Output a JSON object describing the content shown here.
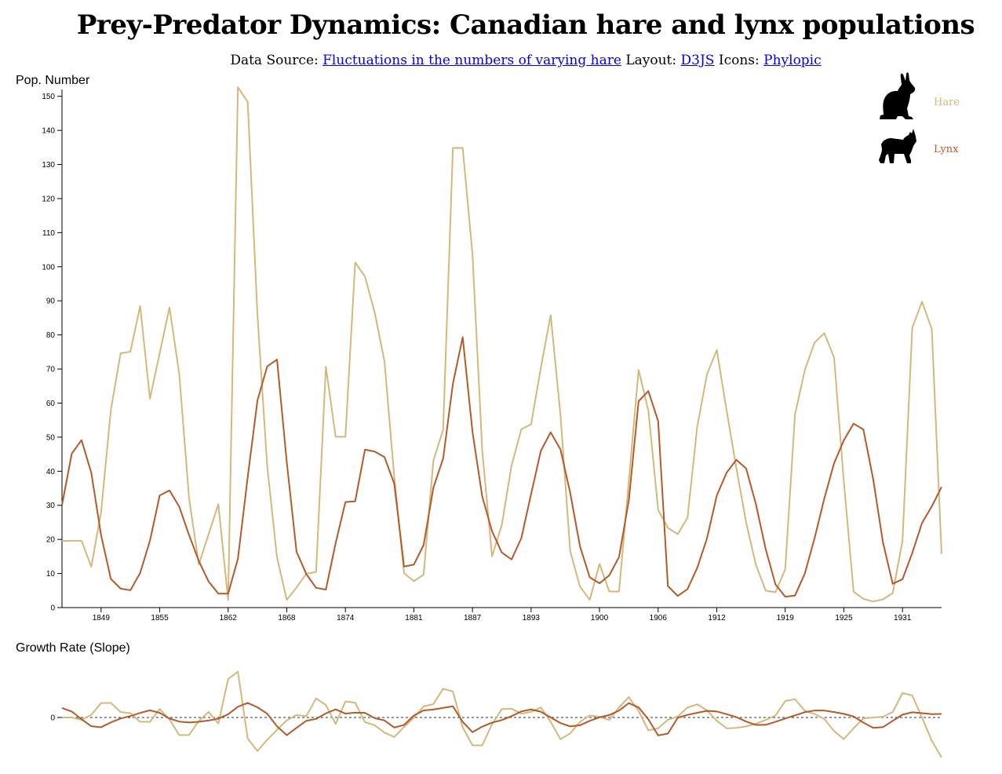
{
  "header": {
    "title": "Prey-Predator Dynamics: Canadian hare and lynx populations",
    "source_prefix": "Data Source:",
    "source_link": "Fluctuations in the numbers of varying hare",
    "layout_prefix": "Layout:",
    "layout_link": "D3JS",
    "icons_prefix": "Icons:",
    "icons_link": "Phylopic"
  },
  "colors": {
    "hare": "#d4b77a",
    "lynx": "#b45a2a",
    "axis": "#000000",
    "zero_line": "#333333"
  },
  "legend": [
    {
      "name": "Hare",
      "icon": "hare-silhouette-icon"
    },
    {
      "name": "Lynx",
      "icon": "lynx-silhouette-icon"
    }
  ],
  "chart_data": [
    {
      "type": "line",
      "ylabel": "Pop. Number",
      "xlim": [
        1845,
        1935
      ],
      "ylim": [
        0,
        152
      ],
      "y_ticks": [
        0,
        10,
        20,
        30,
        40,
        50,
        60,
        70,
        80,
        90,
        100,
        110,
        120,
        130,
        140,
        150
      ],
      "x_ticks": [
        1849,
        1855,
        1862,
        1868,
        1874,
        1881,
        1887,
        1893,
        1900,
        1906,
        1912,
        1919,
        1925,
        1931
      ],
      "x": [
        1845,
        1846,
        1847,
        1848,
        1849,
        1850,
        1851,
        1852,
        1853,
        1854,
        1855,
        1856,
        1857,
        1858,
        1859,
        1860,
        1861,
        1862,
        1863,
        1864,
        1865,
        1866,
        1867,
        1868,
        1869,
        1870,
        1871,
        1872,
        1873,
        1874,
        1875,
        1876,
        1877,
        1878,
        1879,
        1880,
        1881,
        1882,
        1883,
        1884,
        1885,
        1886,
        1887,
        1888,
        1889,
        1890,
        1891,
        1892,
        1893,
        1894,
        1895,
        1896,
        1897,
        1898,
        1899,
        1900,
        1901,
        1902,
        1903,
        1904,
        1905,
        1906,
        1907,
        1908,
        1909,
        1910,
        1911,
        1912,
        1913,
        1914,
        1915,
        1916,
        1917,
        1918,
        1919,
        1920,
        1921,
        1922,
        1923,
        1924,
        1925,
        1926,
        1927,
        1928,
        1929,
        1930,
        1931,
        1932,
        1933,
        1934,
        1935
      ],
      "series": [
        {
          "name": "Hare",
          "values": [
            19.58,
            19.6,
            19.61,
            11.99,
            28.04,
            58.0,
            74.6,
            75.09,
            88.48,
            61.28,
            74.67,
            88.06,
            68.51,
            32.19,
            12.64,
            21.49,
            30.35,
            2.18,
            152.65,
            148.36,
            85.81,
            41.41,
            14.75,
            2.28,
            5.91,
            9.95,
            10.44,
            70.64,
            50.12,
            50.13,
            101.25,
            97.12,
            86.51,
            72.17,
            38.32,
            10.11,
            7.74,
            9.67,
            43.12,
            52.21,
            134.85,
            134.86,
            103.79,
            46.1,
            15.03,
            24.2,
            41.65,
            52.34,
            53.78,
            70.4,
            85.81,
            56.69,
            16.59,
            6.16,
            2.3,
            12.82,
            4.72,
            4.73,
            37.22,
            69.72,
            57.78,
            28.68,
            23.37,
            21.54,
            26.34,
            53.1,
            68.48,
            75.58,
            57.92,
            40.97,
            24.95,
            12.59,
            4.97,
            4.5,
            11.21,
            56.6,
            69.63,
            77.74,
            80.53,
            73.38,
            36.93,
            4.64,
            2.54,
            1.8,
            2.39,
            4.23,
            19.52,
            82.11,
            89.76,
            81.66,
            15.76
          ]
        },
        {
          "name": "Lynx",
          "values": [
            30.09,
            45.15,
            49.15,
            39.52,
            21.23,
            8.42,
            5.56,
            5.08,
            10.17,
            19.6,
            32.91,
            34.38,
            29.59,
            21.3,
            13.69,
            7.65,
            4.08,
            4.09,
            14.33,
            38.22,
            60.78,
            70.77,
            72.77,
            42.68,
            16.39,
            9.83,
            5.8,
            5.26,
            18.91,
            30.95,
            31.18,
            46.34,
            45.77,
            44.15,
            36.33,
            12.03,
            12.6,
            18.34,
            35.14,
            43.77,
            65.69,
            79.35,
            51.65,
            32.59,
            22.45,
            16.16,
            14.12,
            20.38,
            33.33,
            46.0,
            51.41,
            46.43,
            33.68,
            18.01,
            8.86,
            7.13,
            9.47,
            14.86,
            31.47,
            60.57,
            63.51,
            54.7,
            6.3,
            3.41,
            5.44,
            11.65,
            20.35,
            32.88,
            39.55,
            43.36,
            40.83,
            30.36,
            17.18,
            6.82,
            3.19,
            3.52,
            9.94,
            20.3,
            31.99,
            42.36,
            49.08,
            53.99,
            52.25,
            37.7,
            19.14,
            6.98,
            8.31,
            16.01,
            24.82,
            29.7,
            35.4
          ]
        }
      ]
    },
    {
      "type": "line",
      "ylabel": "Growth Rate (Slope)",
      "y_ticks": [
        0
      ],
      "xlim": [
        1845,
        1935
      ],
      "ylim": [
        -18,
        18
      ]
    }
  ]
}
